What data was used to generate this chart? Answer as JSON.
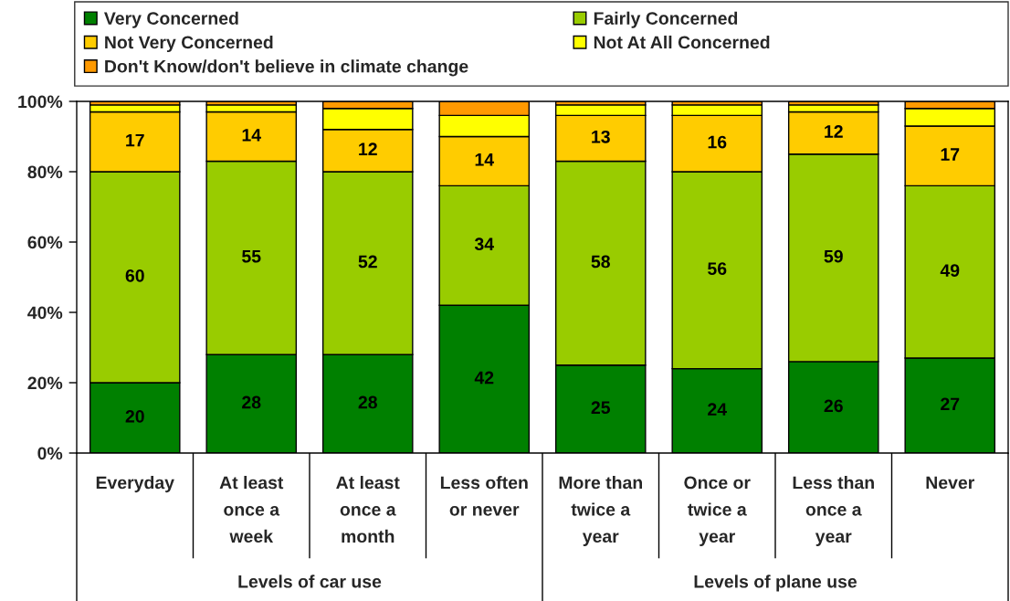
{
  "chart_data": {
    "type": "bar",
    "stacked": true,
    "categories": [
      "Everyday",
      "At least\nonce a\nweek",
      "At least\nonce a\nmonth",
      "Less often\nor never",
      "More than\ntwice a\nyear",
      "Once or\ntwice a\nyear",
      "Less than\nonce a\nyear",
      "Never"
    ],
    "series": [
      {
        "name": "Very Concerned",
        "color": "#008000",
        "values": [
          20,
          28,
          28,
          42,
          25,
          24,
          26,
          27
        ],
        "value_labels": [
          "20",
          "28",
          "28",
          "42",
          "25",
          "24",
          "26",
          "27"
        ]
      },
      {
        "name": "Fairly Concerned",
        "color": "#99cc00",
        "values": [
          60,
          55,
          52,
          34,
          58,
          56,
          59,
          49
        ],
        "value_labels": [
          "60",
          "55",
          "52",
          "34",
          "58",
          "56",
          "59",
          "49"
        ]
      },
      {
        "name": "Not Very Concerned",
        "color": "#ffcc00",
        "values": [
          17,
          14,
          12,
          14,
          13,
          16,
          12,
          17
        ],
        "value_labels": [
          "17",
          "14",
          "12",
          "14",
          "13",
          "16",
          "12",
          "17"
        ]
      },
      {
        "name": "Not At All Concerned",
        "color": "#ffff00",
        "values": [
          2,
          2,
          6,
          6,
          3,
          3,
          2,
          5
        ]
      },
      {
        "name": "Don't Know/don't believe in climate change",
        "color": "#ff9900",
        "values": [
          1,
          1,
          2,
          4,
          1,
          1,
          1,
          2
        ]
      }
    ],
    "ylim": [
      0,
      100
    ],
    "yticks": [
      {
        "value": 0,
        "label": "0%"
      },
      {
        "value": 20,
        "label": "20%"
      },
      {
        "value": 40,
        "label": "40%"
      },
      {
        "value": 60,
        "label": "60%"
      },
      {
        "value": 80,
        "label": "80%"
      },
      {
        "value": 100,
        "label": "100%"
      }
    ],
    "legend": "top",
    "annotations": [
      "Levels of car use",
      "Levels of plane use"
    ]
  }
}
